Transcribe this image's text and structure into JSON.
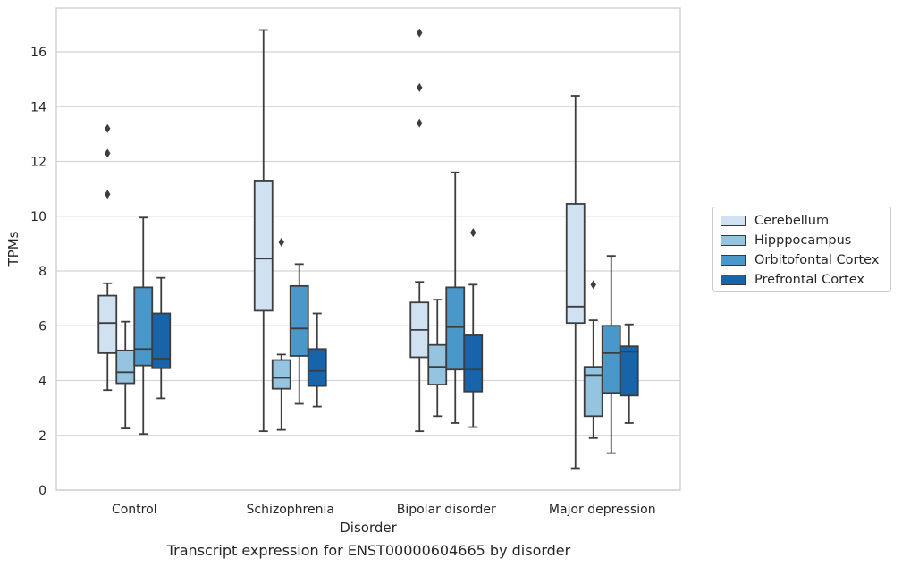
{
  "chart_data": {
    "type": "box",
    "xlabel": "Disorder",
    "ylabel": "TPMs",
    "caption": "Transcript expression for ENST00000604665 by disorder",
    "ylim": [
      0,
      17.6
    ],
    "yticks": [
      0,
      2,
      4,
      6,
      8,
      10,
      12,
      14,
      16
    ],
    "grid": "horizontal",
    "legend_position": "right",
    "categories": [
      "Control",
      "Schizophrenia",
      "Bipolar disorder",
      "Major depression"
    ],
    "series": [
      {
        "name": "Cerebellum",
        "color": "#d0e1f2",
        "boxes": [
          {
            "whisker_low": 3.65,
            "q1": 5.0,
            "median": 6.1,
            "q3": 7.1,
            "whisker_high": 7.55,
            "outliers": [
              10.8,
              12.3,
              13.2
            ]
          },
          {
            "whisker_low": 2.15,
            "q1": 6.55,
            "median": 8.45,
            "q3": 11.3,
            "whisker_high": 16.8,
            "outliers": []
          },
          {
            "whisker_low": 2.15,
            "q1": 4.85,
            "median": 5.85,
            "q3": 6.85,
            "whisker_high": 7.6,
            "outliers": [
              13.4,
              14.7,
              16.7
            ]
          },
          {
            "whisker_low": 0.8,
            "q1": 6.1,
            "median": 6.7,
            "q3": 10.45,
            "whisker_high": 14.4,
            "outliers": []
          }
        ]
      },
      {
        "name": "Hipppocampus",
        "color": "#94c4df",
        "boxes": [
          {
            "whisker_low": 2.25,
            "q1": 3.9,
            "median": 4.3,
            "q3": 5.1,
            "whisker_high": 6.15,
            "outliers": []
          },
          {
            "whisker_low": 2.2,
            "q1": 3.7,
            "median": 4.1,
            "q3": 4.75,
            "whisker_high": 4.95,
            "outliers": [
              9.05
            ]
          },
          {
            "whisker_low": 2.7,
            "q1": 3.85,
            "median": 4.5,
            "q3": 5.3,
            "whisker_high": 6.95,
            "outliers": []
          },
          {
            "whisker_low": 1.9,
            "q1": 2.7,
            "median": 4.2,
            "q3": 4.5,
            "whisker_high": 6.2,
            "outliers": [
              7.5
            ]
          }
        ]
      },
      {
        "name": "Orbitofontal Cortex",
        "color": "#4a98c9",
        "boxes": [
          {
            "whisker_low": 2.05,
            "q1": 4.55,
            "median": 5.15,
            "q3": 7.4,
            "whisker_high": 9.95,
            "outliers": []
          },
          {
            "whisker_low": 3.15,
            "q1": 4.9,
            "median": 5.9,
            "q3": 7.45,
            "whisker_high": 8.25,
            "outliers": []
          },
          {
            "whisker_low": 2.45,
            "q1": 4.4,
            "median": 5.95,
            "q3": 7.4,
            "whisker_high": 11.6,
            "outliers": []
          },
          {
            "whisker_low": 1.35,
            "q1": 3.55,
            "median": 5.0,
            "q3": 6.0,
            "whisker_high": 8.55,
            "outliers": []
          }
        ]
      },
      {
        "name": "Prefrontal Cortex",
        "color": "#1764ab",
        "boxes": [
          {
            "whisker_low": 3.35,
            "q1": 4.45,
            "median": 4.8,
            "q3": 6.45,
            "whisker_high": 7.75,
            "outliers": []
          },
          {
            "whisker_low": 3.05,
            "q1": 3.8,
            "median": 4.35,
            "q3": 5.15,
            "whisker_high": 6.45,
            "outliers": []
          },
          {
            "whisker_low": 2.3,
            "q1": 3.6,
            "median": 4.4,
            "q3": 5.65,
            "whisker_high": 7.5,
            "outliers": [
              9.4
            ]
          },
          {
            "whisker_low": 2.45,
            "q1": 3.45,
            "median": 5.05,
            "q3": 5.25,
            "whisker_high": 6.05,
            "outliers": []
          }
        ]
      }
    ]
  }
}
